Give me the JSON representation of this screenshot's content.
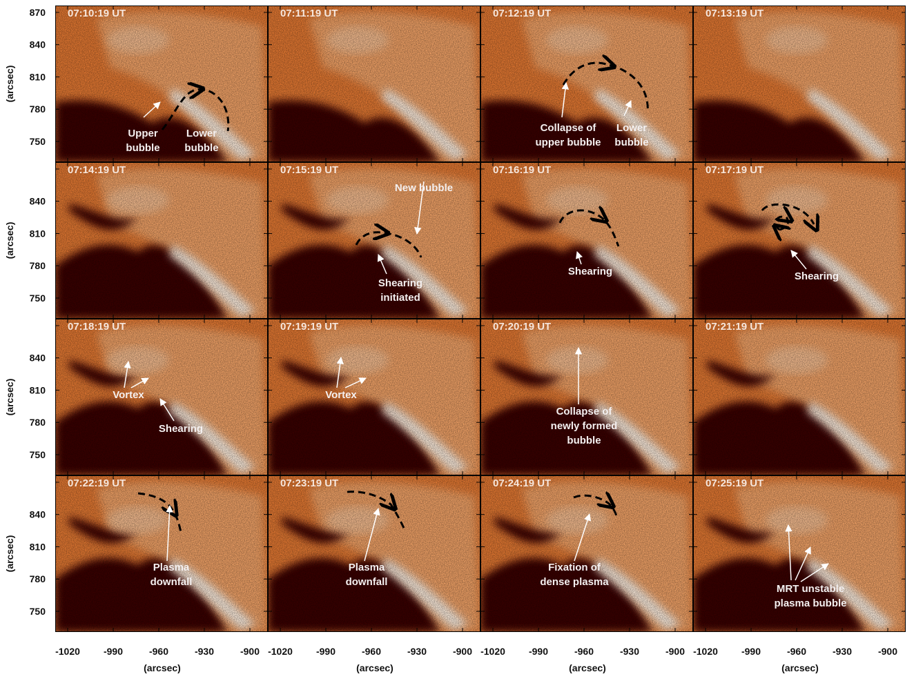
{
  "panels": [
    {
      "time": "07:10:19 UT",
      "annotations": [
        [
          "Upper",
          "bubble"
        ],
        [
          "Lower",
          "bubble"
        ]
      ]
    },
    {
      "time": "07:11:19 UT",
      "annotations": []
    },
    {
      "time": "07:12:19 UT",
      "annotations": [
        [
          "Collapse of",
          "upper bubble"
        ],
        [
          "Lower",
          "bubble"
        ]
      ]
    },
    {
      "time": "07:13:19 UT",
      "annotations": []
    },
    {
      "time": "07:14:19 UT",
      "annotations": []
    },
    {
      "time": "07:15:19 UT",
      "annotations": [
        [
          "New bubble"
        ],
        [
          "Shearing",
          "initiated"
        ]
      ]
    },
    {
      "time": "07:16:19 UT",
      "annotations": [
        [
          "Shearing"
        ]
      ]
    },
    {
      "time": "07:17:19 UT",
      "annotations": [
        [
          "Shearing"
        ]
      ]
    },
    {
      "time": "07:18:19 UT",
      "annotations": [
        [
          "Vortex"
        ],
        [
          "Shearing"
        ]
      ]
    },
    {
      "time": "07:19:19 UT",
      "annotations": [
        [
          "Vortex"
        ]
      ]
    },
    {
      "time": "07:20:19 UT",
      "annotations": [
        [
          "Collapse of",
          "newly formed",
          "bubble"
        ]
      ]
    },
    {
      "time": "07:21:19 UT",
      "annotations": []
    },
    {
      "time": "07:22:19 UT",
      "annotations": [
        [
          "Plasma",
          "downfall"
        ]
      ]
    },
    {
      "time": "07:23:19 UT",
      "annotations": [
        [
          "Plasma",
          "downfall"
        ]
      ]
    },
    {
      "time": "07:24:19 UT",
      "annotations": [
        [
          "Fixation of",
          "dense plasma"
        ]
      ]
    },
    {
      "time": "07:25:19 UT",
      "annotations": [
        [
          "MRT unstable",
          "plasma bubble"
        ]
      ]
    }
  ],
  "x_axis": {
    "label": "(arcsec)",
    "ticks": [
      -1020,
      -990,
      -960,
      -930,
      -900
    ]
  },
  "y_axis": {
    "label": "(arcsec)",
    "ticks": [
      870,
      840,
      810,
      780,
      750
    ]
  }
}
